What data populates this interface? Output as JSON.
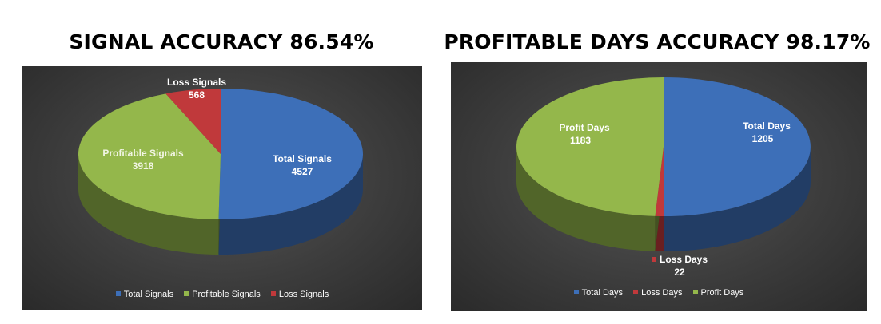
{
  "chart_data": [
    {
      "type": "pie",
      "title": "SIGNAL ACCURACY 86.54%",
      "categories": [
        "Total Signals",
        "Profitable Signals",
        "Loss Signals"
      ],
      "values": [
        4527,
        3918,
        568
      ],
      "colors": [
        "#3d6fb8",
        "#94b74b",
        "#c0393b"
      ],
      "legend": "bottom",
      "style": "3d"
    },
    {
      "type": "pie",
      "title": "PROFITABLE DAYS ACCURACY 98.17%",
      "categories": [
        "Total Days",
        "Loss Days",
        "Profit Days"
      ],
      "values": [
        1205,
        22,
        1183
      ],
      "colors": [
        "#3d6fb8",
        "#c0393b",
        "#94b74b"
      ],
      "legend": "bottom",
      "style": "3d"
    }
  ]
}
